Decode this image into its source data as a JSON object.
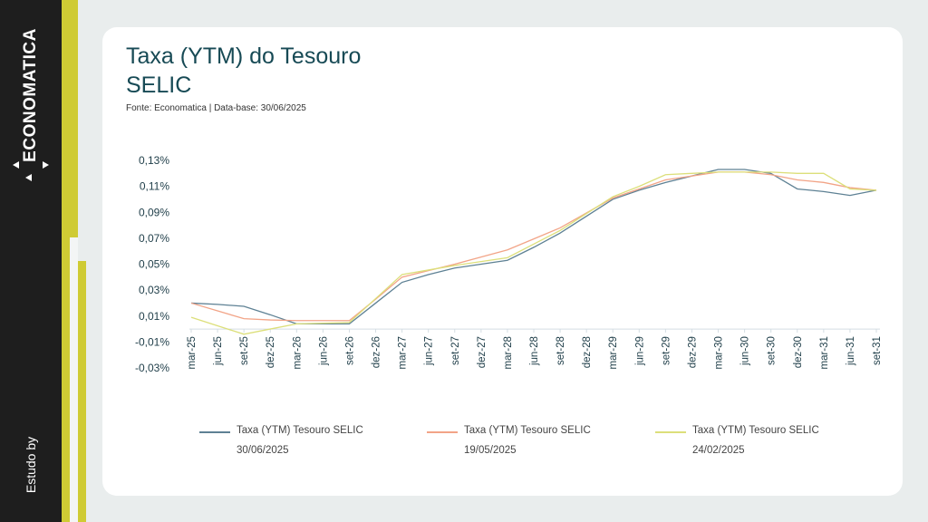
{
  "brand": {
    "logo_text": "ECONOMATICA",
    "by_label": "Estudo by"
  },
  "title_line1": "Taxa (YTM) do Tesouro",
  "title_line2": "SELIC",
  "source": "Fonte: Economatica | Data-base: 30/06/2025",
  "colors": {
    "s1": "#5e8194",
    "s2": "#f2a487",
    "s3": "#dcdf7a",
    "text": "#174a55",
    "accent": "#cfcb34"
  },
  "chart_data": {
    "type": "line",
    "title": "Taxa (YTM) do Tesouro SELIC",
    "ylim": [
      -0.03,
      0.13
    ],
    "yticks": [
      0.13,
      0.11,
      0.09,
      0.07,
      0.05,
      0.03,
      0.01,
      -0.01,
      -0.03
    ],
    "ytick_labels": [
      "0,13%",
      "0,11%",
      "0,09%",
      "0,07%",
      "0,05%",
      "0,03%",
      "0,01%",
      "-0,01%",
      "-0,03%"
    ],
    "categories": [
      "mar-25",
      "jun-25",
      "set-25",
      "dez-25",
      "mar-26",
      "jun-26",
      "set-26",
      "dez-26",
      "mar-27",
      "jun-27",
      "set-27",
      "dez-27",
      "mar-28",
      "jun-28",
      "set-28",
      "dez-28",
      "mar-29",
      "jun-29",
      "set-29",
      "dez-29",
      "mar-30",
      "jun-30",
      "set-30",
      "dez-30",
      "mar-31",
      "jun-31",
      "set-31"
    ],
    "series": [
      {
        "name": "Taxa (YTM) Tesouro SELIC",
        "date": "30/06/2025",
        "color_key": "s1",
        "values": [
          0.02,
          0.019,
          0.0175,
          0.011,
          0.004,
          0.004,
          0.004,
          0.02,
          0.036,
          0.042,
          0.047,
          0.05,
          0.053,
          0.063,
          0.074,
          0.087,
          0.1,
          0.107,
          0.113,
          0.118,
          0.123,
          0.123,
          0.12,
          0.108,
          0.106,
          0.103,
          0.107
        ]
      },
      {
        "name": "Taxa (YTM) Tesouro SELIC",
        "date": "19/05/2025",
        "color_key": "s2",
        "values": [
          0.02,
          0.014,
          0.008,
          0.007,
          0.0065,
          0.0065,
          0.0065,
          0.023,
          0.04,
          0.045,
          0.05,
          0.0555,
          0.061,
          0.0695,
          0.078,
          0.0895,
          0.101,
          0.108,
          0.115,
          0.118,
          0.121,
          0.121,
          0.119,
          0.115,
          0.113,
          0.109,
          0.107
        ]
      },
      {
        "name": "Taxa (YTM) Tesouro SELIC",
        "date": "24/02/2025",
        "color_key": "s3",
        "values": [
          0.009,
          0.0025,
          -0.004,
          0,
          0.004,
          0.0045,
          0.005,
          0.0235,
          0.042,
          0.0455,
          0.049,
          0.052,
          0.055,
          0.0655,
          0.076,
          0.089,
          0.102,
          0.11,
          0.119,
          0.12,
          0.121,
          0.121,
          0.121,
          0.12,
          0.12,
          0.108,
          0.107
        ]
      }
    ],
    "legend": "bottom",
    "grid": false
  }
}
